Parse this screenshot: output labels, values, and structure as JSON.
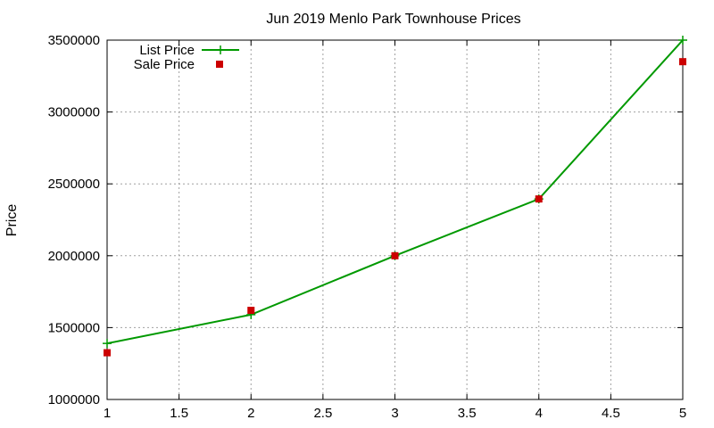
{
  "chart_data": {
    "type": "line",
    "title": "Jun 2019 Menlo Park Townhouse Prices",
    "xlabel": "",
    "ylabel": "Price",
    "xlim": [
      1,
      5
    ],
    "ylim": [
      1000000,
      3500000
    ],
    "xticks": [
      1,
      1.5,
      2,
      2.5,
      3,
      3.5,
      4,
      4.5,
      5
    ],
    "xtick_labels": [
      "1",
      "1.5",
      "2",
      "2.5",
      "3",
      "3.5",
      "4",
      "4.5",
      "5"
    ],
    "yticks": [
      1000000,
      1500000,
      2000000,
      2500000,
      3000000,
      3500000
    ],
    "ytick_labels": [
      "1000000",
      "1500000",
      "2000000",
      "2500000",
      "3000000",
      "3500000"
    ],
    "grid": true,
    "legend_position": "top-left",
    "series": [
      {
        "name": "List Price",
        "style": "line-with-plus-markers",
        "color": "#009900",
        "x": [
          1,
          2,
          3,
          4,
          5
        ],
        "y": [
          1390000,
          1590000,
          2000000,
          2395000,
          3500000
        ]
      },
      {
        "name": "Sale Price",
        "style": "square-markers",
        "color": "#cc0000",
        "x": [
          1,
          2,
          3,
          4,
          5
        ],
        "y": [
          1325000,
          1620000,
          2000000,
          2395000,
          3350000
        ]
      }
    ]
  }
}
